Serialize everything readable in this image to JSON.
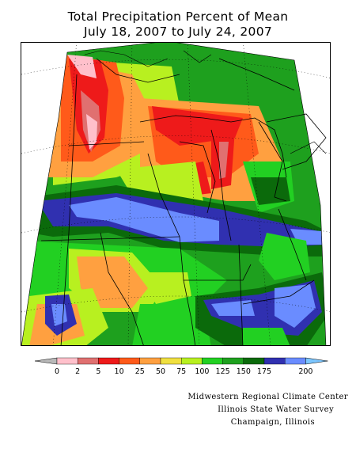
{
  "header": {
    "title_line1": "Total Precipitation Percent of Mean",
    "title_line2": "July 18, 2007 to July 24, 2007"
  },
  "legend": {
    "under_color": "#b8b8b8",
    "over_color": "#7cc6ff",
    "bins": [
      {
        "color": "#ffc0cb",
        "label": "0"
      },
      {
        "color": "#e07070",
        "label": "2"
      },
      {
        "color": "#ee1a1a",
        "label": "5"
      },
      {
        "color": "#ff5a1a",
        "label": "10"
      },
      {
        "color": "#ffa040",
        "label": "25"
      },
      {
        "color": "#f0e040",
        "label": "50"
      },
      {
        "color": "#b8f020",
        "label": "75"
      },
      {
        "color": "#22d022",
        "label": "100"
      },
      {
        "color": "#1ea01e",
        "label": "125"
      },
      {
        "color": "#0b6a0b",
        "label": "150"
      },
      {
        "color": "#3030b0",
        "label": "175"
      },
      {
        "color": "#6a8cff",
        "label": "200"
      }
    ]
  },
  "credits": {
    "line1": "Midwestern Regional Climate Center",
    "line2": "Illinois State Water Survey",
    "line3": "Champaign, Illinois"
  }
}
